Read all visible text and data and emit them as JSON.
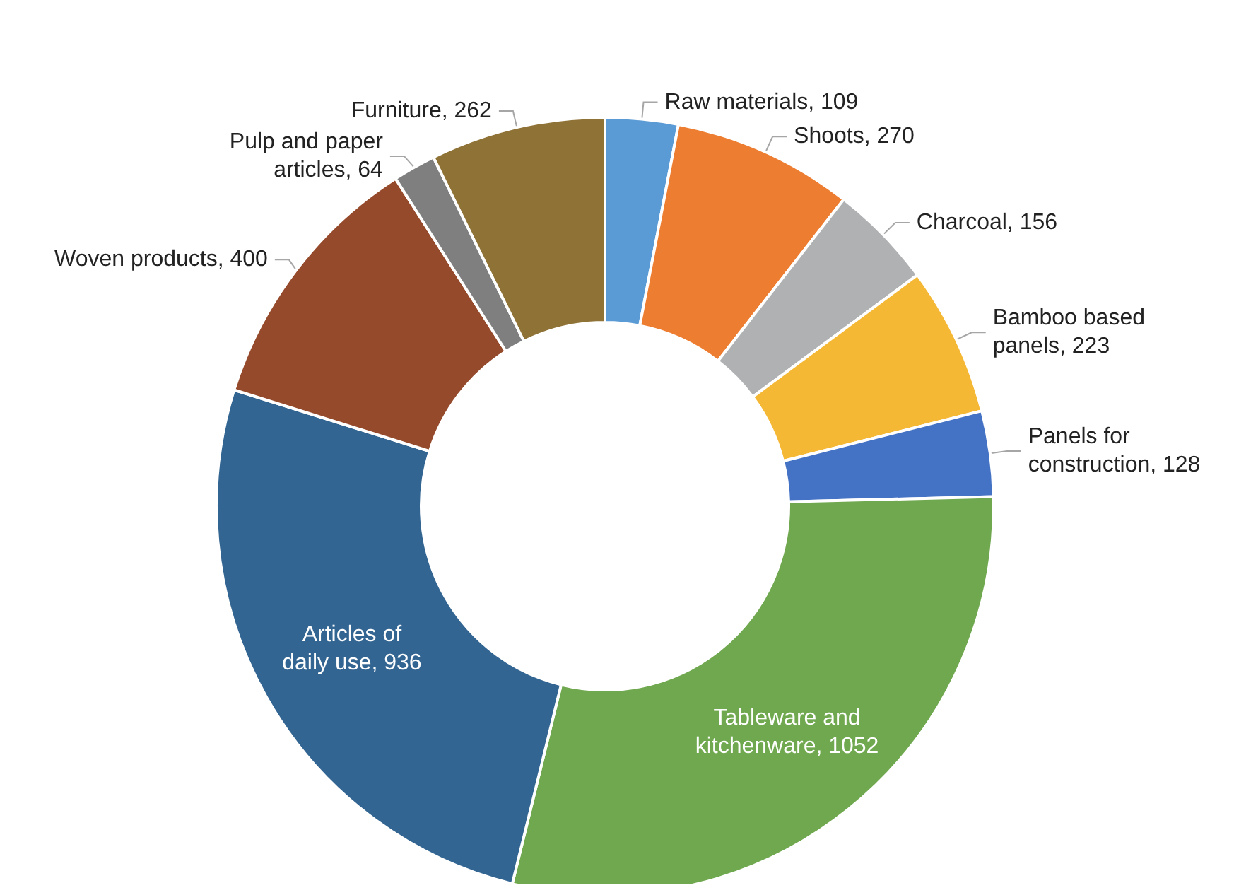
{
  "chart_data": {
    "type": "donut",
    "categories": [
      "Raw materials",
      "Shoots",
      "Charcoal",
      "Bamboo based panels",
      "Panels for construction",
      "Tableware and kitchenware",
      "Articles of daily use",
      "Woven products",
      "Pulp and paper articles",
      "Furniture"
    ],
    "values": [
      109,
      270,
      156,
      223,
      128,
      1052,
      936,
      400,
      64,
      262
    ],
    "colors": [
      "#5b9bd5",
      "#ed7d31",
      "#b0b1b3",
      "#f5b835",
      "#4472c4",
      "#70a84f",
      "#336592",
      "#954a2c",
      "#7f7f7f",
      "#8f7236"
    ],
    "value_labels": [
      ", 109",
      ", 270",
      ", 156",
      ", 223",
      ", 128",
      ", 1052",
      ", 936",
      ", 400",
      ", 64",
      ", 262"
    ],
    "legend": false
  }
}
